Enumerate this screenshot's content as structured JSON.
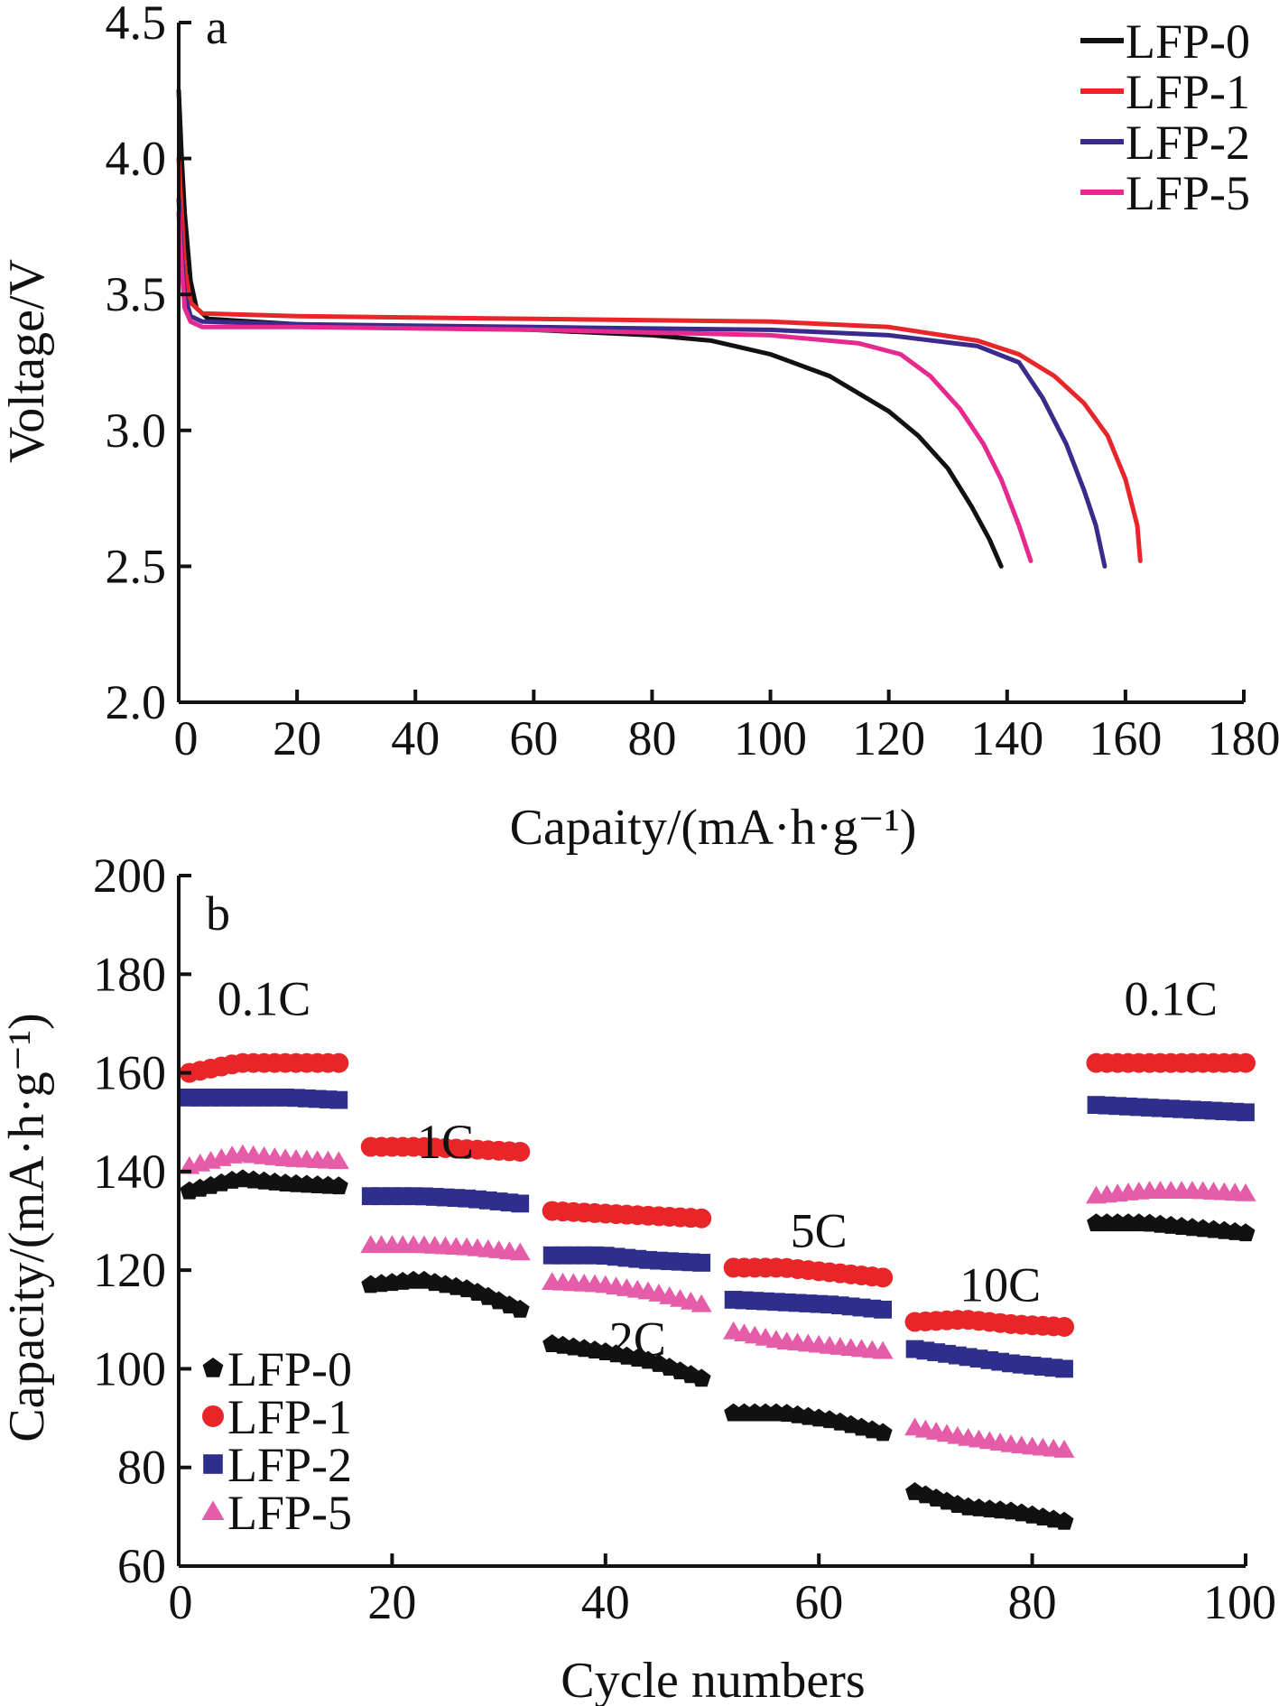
{
  "chart_data": [
    {
      "panel_label": "a",
      "type": "line",
      "xlabel": "Capaity/(mA·h·g⁻¹)",
      "ylabel": "Voltage/V",
      "xlim": [
        0,
        180
      ],
      "ylim": [
        2.0,
        4.5
      ],
      "xticks": [
        "0",
        "20",
        "40",
        "60",
        "80",
        "100",
        "120",
        "140",
        "160",
        "180"
      ],
      "yticks": [
        "2.0",
        "2.5",
        "3.0",
        "3.5",
        "4.0",
        "4.5"
      ],
      "grid": false,
      "legend_position": "top-right",
      "series": [
        {
          "name": "LFP-0",
          "color": "#111111",
          "points": [
            [
              0,
              4.25
            ],
            [
              0.5,
              4.0
            ],
            [
              1,
              3.8
            ],
            [
              2,
              3.55
            ],
            [
              3,
              3.45
            ],
            [
              5,
              3.41
            ],
            [
              20,
              3.39
            ],
            [
              40,
              3.38
            ],
            [
              60,
              3.37
            ],
            [
              80,
              3.35
            ],
            [
              90,
              3.33
            ],
            [
              100,
              3.28
            ],
            [
              110,
              3.2
            ],
            [
              120,
              3.07
            ],
            [
              125,
              2.98
            ],
            [
              130,
              2.86
            ],
            [
              134,
              2.72
            ],
            [
              137,
              2.6
            ],
            [
              139,
              2.5
            ]
          ]
        },
        {
          "name": "LFP-1",
          "color": "#e8262a",
          "points": [
            [
              0,
              4.0
            ],
            [
              0.5,
              3.8
            ],
            [
              1,
              3.6
            ],
            [
              2,
              3.47
            ],
            [
              4,
              3.43
            ],
            [
              20,
              3.42
            ],
            [
              60,
              3.41
            ],
            [
              100,
              3.4
            ],
            [
              120,
              3.38
            ],
            [
              135,
              3.33
            ],
            [
              142,
              3.28
            ],
            [
              148,
              3.2
            ],
            [
              153,
              3.1
            ],
            [
              157,
              2.98
            ],
            [
              160,
              2.82
            ],
            [
              162,
              2.65
            ],
            [
              162.5,
              2.52
            ]
          ]
        },
        {
          "name": "LFP-2",
          "color": "#3b2a8c",
          "points": [
            [
              0,
              3.85
            ],
            [
              0.5,
              3.65
            ],
            [
              1,
              3.5
            ],
            [
              2,
              3.42
            ],
            [
              4,
              3.4
            ],
            [
              20,
              3.39
            ],
            [
              60,
              3.38
            ],
            [
              100,
              3.37
            ],
            [
              120,
              3.35
            ],
            [
              135,
              3.31
            ],
            [
              142,
              3.25
            ],
            [
              146,
              3.12
            ],
            [
              150,
              2.95
            ],
            [
              153,
              2.78
            ],
            [
              155,
              2.65
            ],
            [
              156.5,
              2.5
            ]
          ]
        },
        {
          "name": "LFP-5",
          "color": "#e5298f",
          "points": [
            [
              0,
              3.8
            ],
            [
              0.5,
              3.6
            ],
            [
              1,
              3.45
            ],
            [
              2,
              3.4
            ],
            [
              4,
              3.38
            ],
            [
              20,
              3.38
            ],
            [
              60,
              3.37
            ],
            [
              100,
              3.35
            ],
            [
              115,
              3.32
            ],
            [
              122,
              3.28
            ],
            [
              127,
              3.2
            ],
            [
              132,
              3.08
            ],
            [
              136,
              2.95
            ],
            [
              139,
              2.82
            ],
            [
              142,
              2.65
            ],
            [
              144,
              2.52
            ]
          ]
        }
      ]
    },
    {
      "panel_label": "b",
      "type": "scatter",
      "xlabel": "Cycle numbers",
      "ylabel": "Capacity/(mA·h·g⁻¹)",
      "xlim": [
        0,
        100
      ],
      "ylim": [
        60,
        200
      ],
      "xticks": [
        "0",
        "20",
        "40",
        "60",
        "80",
        "100"
      ],
      "yticks": [
        "60",
        "80",
        "100",
        "120",
        "140",
        "160",
        "180",
        "200"
      ],
      "grid": false,
      "legend_position": "bottom-left",
      "rate_labels": [
        {
          "text": "0.1C",
          "x": 8,
          "y": 175
        },
        {
          "text": "1C",
          "x": 25,
          "y": 146
        },
        {
          "text": "2C",
          "x": 43,
          "y": 106
        },
        {
          "text": "5C",
          "x": 60,
          "y": 128
        },
        {
          "text": "10C",
          "x": 77,
          "y": 117
        },
        {
          "text": "0.1C",
          "x": 93,
          "y": 175
        }
      ],
      "segments": [
        {
          "rate": "0.1C",
          "x_start": 1,
          "x_end": 15
        },
        {
          "rate": "1C",
          "x_start": 18,
          "x_end": 32
        },
        {
          "rate": "2C",
          "x_start": 35,
          "x_end": 49
        },
        {
          "rate": "5C",
          "x_start": 52,
          "x_end": 66
        },
        {
          "rate": "10C",
          "x_start": 69,
          "x_end": 83
        },
        {
          "rate": "0.1C",
          "x_start": 86,
          "x_end": 100
        }
      ],
      "series": [
        {
          "name": "LFP-0",
          "marker": "pentagon",
          "color": "#111111",
          "segment_values": [
            [
              136,
              138.5,
              137.5,
              137
            ],
            [
              117,
              118,
              116,
              112
            ],
            [
              105,
              103.5,
              101.5,
              98
            ],
            [
              91,
              91,
              89.5,
              87
            ],
            [
              75,
              72,
              71,
              69
            ],
            [
              129.5,
              129.5,
              128.5,
              127.5
            ]
          ]
        },
        {
          "name": "LFP-1",
          "marker": "circle",
          "color": "#e8262a",
          "segment_values": [
            [
              160,
              162,
              162,
              162
            ],
            [
              145,
              145,
              144.5,
              144
            ],
            [
              132,
              131.5,
              131,
              130.5
            ],
            [
              120.5,
              120.5,
              119.5,
              118.5
            ],
            [
              109.5,
              110,
              109,
              108.5
            ],
            [
              162,
              162,
              162,
              162
            ]
          ]
        },
        {
          "name": "LFP-2",
          "marker": "square",
          "color": "#2e2f8c",
          "segment_values": [
            [
              155,
              155,
              155,
              154.5
            ],
            [
              135,
              135,
              134.5,
              133.5
            ],
            [
              123,
              123,
              122,
              121.5
            ],
            [
              114,
              113.5,
              113,
              112
            ],
            [
              104,
              102.5,
              101,
              100
            ],
            [
              153.5,
              153,
              152.5,
              152
            ]
          ]
        },
        {
          "name": "LFP-5",
          "marker": "triangle",
          "color": "#e55ca8",
          "segment_values": [
            [
              141,
              143.5,
              142.5,
              142
            ],
            [
              125,
              125,
              124.5,
              123.5
            ],
            [
              117.5,
              117,
              115.5,
              113
            ],
            [
              107.5,
              105.5,
              104.5,
              103.5
            ],
            [
              88,
              86,
              84.5,
              83.5
            ],
            [
              135,
              136,
              136,
              135.5
            ]
          ]
        }
      ]
    }
  ]
}
